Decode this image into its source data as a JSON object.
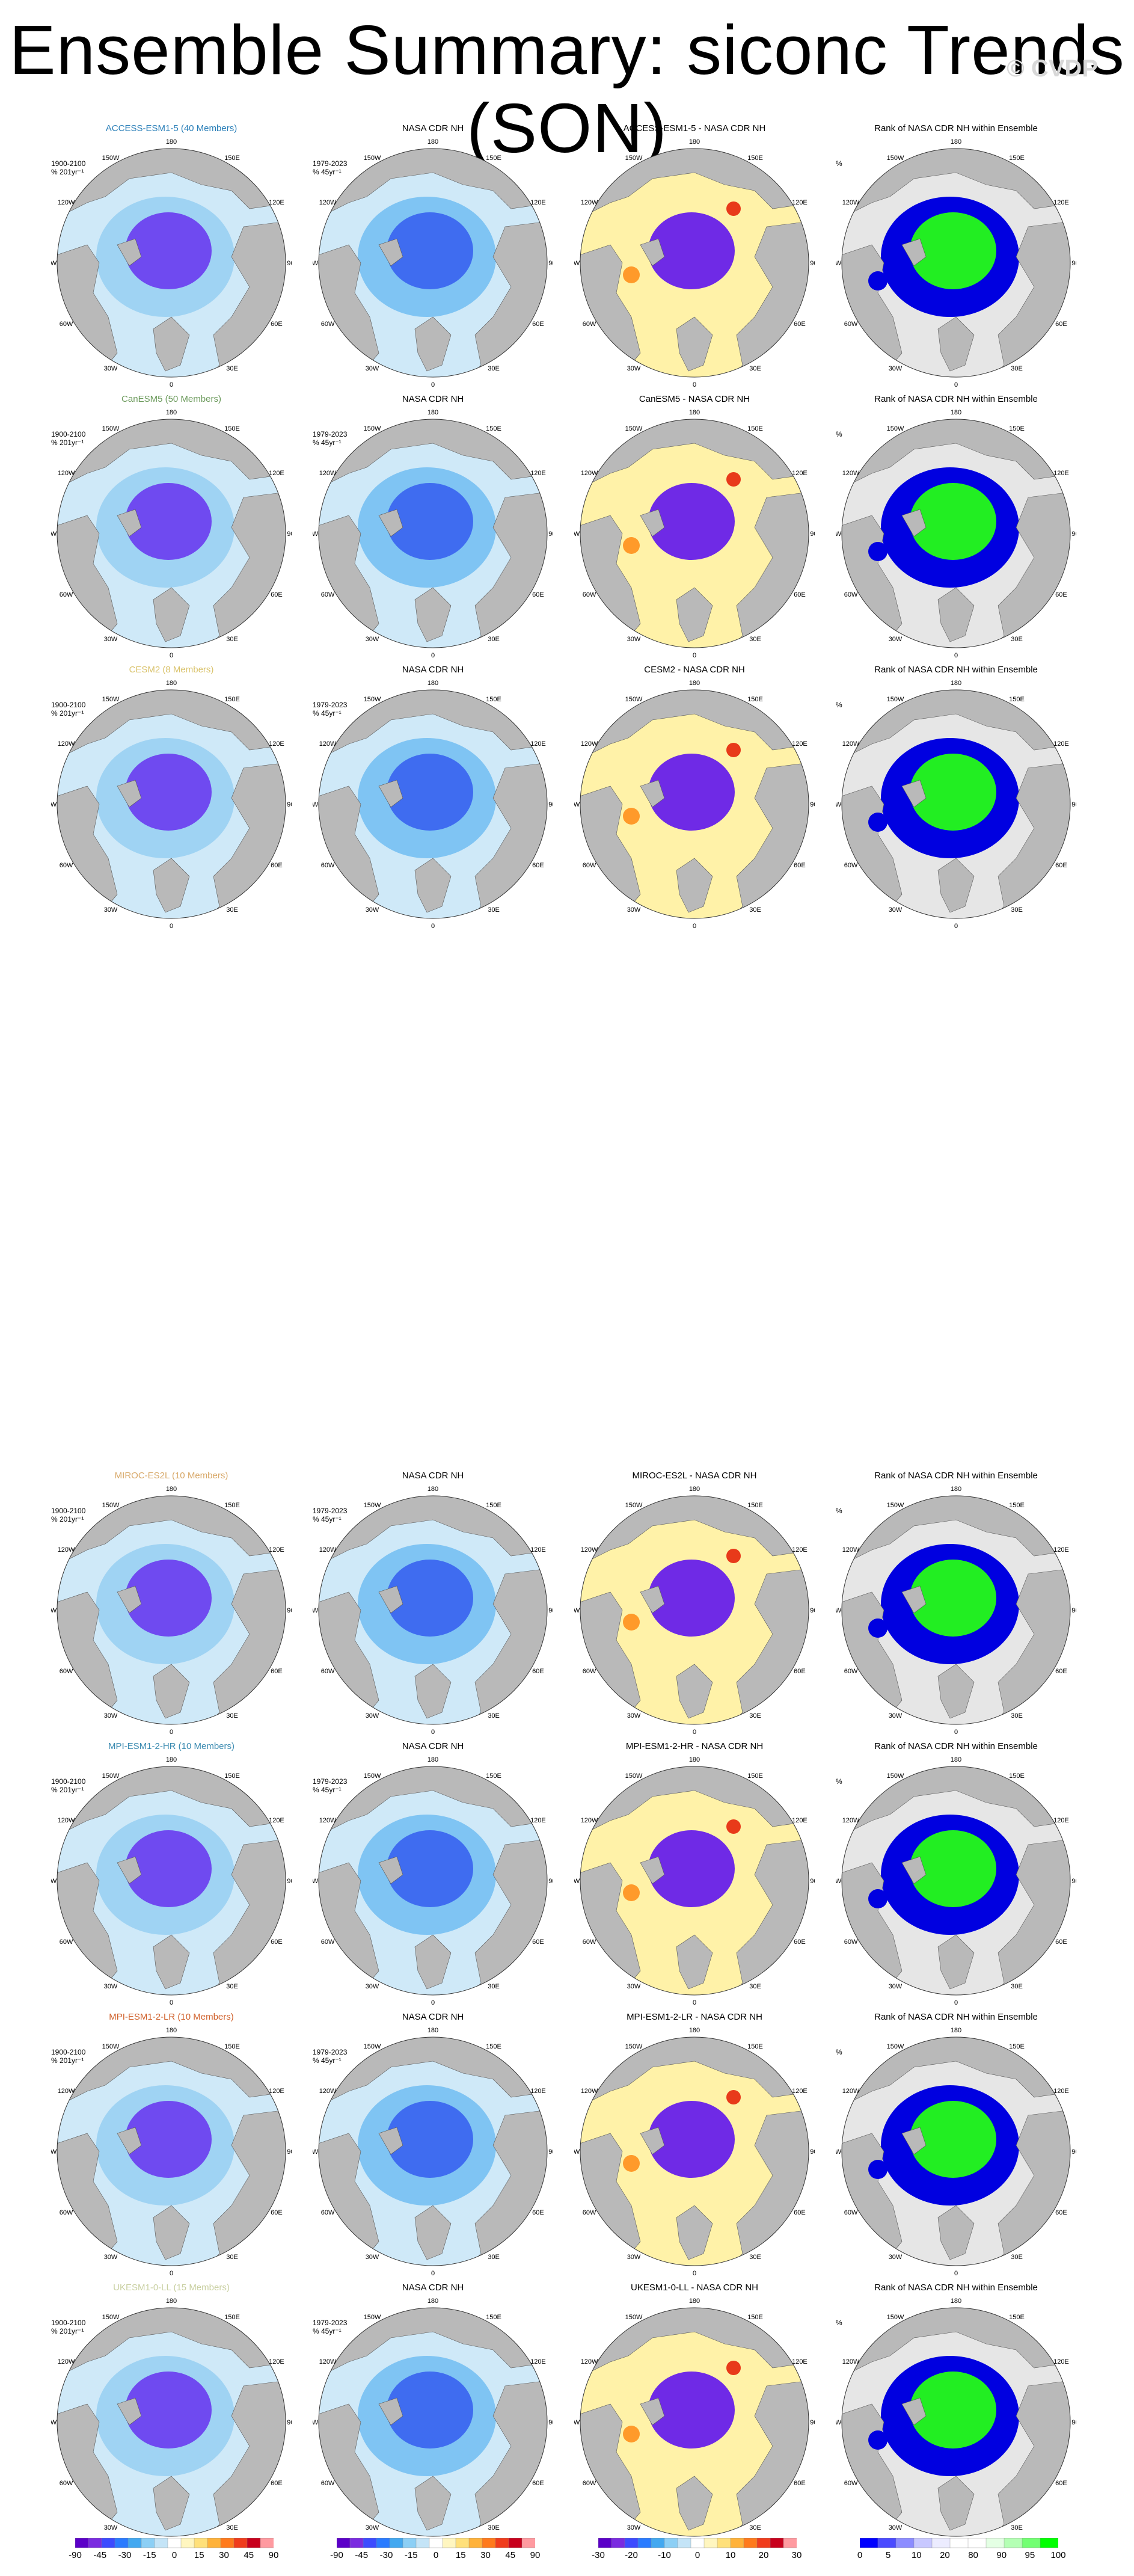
{
  "page": {
    "title": "Ensemble Summary: siconc Trends (SON)",
    "watermark": "© CVDP"
  },
  "common": {
    "obs_title": "NASA CDR NH",
    "model_period": "1900-2100\n% 201yr⁻¹",
    "obs_period": "1979-2023\n% 45yr⁻¹",
    "rank_unit": "%",
    "lon_labels": [
      "180",
      "150E",
      "120E",
      "90E",
      "60E",
      "30E",
      "0",
      "30W",
      "60W",
      "90W",
      "120W",
      "150W"
    ]
  },
  "rows": [
    {
      "model": "ACCESS-ESM1-5 (40 Members)",
      "model_color": "#2a7fb8",
      "diff_title": "ACCESS-ESM1-5 - NASA CDR NH",
      "rank_title": "Rank of NASA CDR NH within Ensemble"
    },
    {
      "model": "CanESM5 (50 Members)",
      "model_color": "#6b9a5b",
      "diff_title": "CanESM5 - NASA CDR NH",
      "rank_title": "Rank of NASA CDR NH within Ensemble"
    },
    {
      "model": "CESM2 (8 Members)",
      "model_color": "#d9c26a",
      "diff_title": "CESM2 - NASA CDR NH",
      "rank_title": "Rank of NASA CDR NH within Ensemble"
    },
    {
      "model": "MIROC-ES2L (10 Members)",
      "model_color": "#d8a96a",
      "diff_title": "MIROC-ES2L - NASA CDR NH",
      "rank_title": "Rank of NASA CDR NH within Ensemble"
    },
    {
      "model": "MPI-ESM1-2-HR (10 Members)",
      "model_color": "#3a8ab0",
      "diff_title": "MPI-ESM1-2-HR - NASA CDR NH",
      "rank_title": "Rank of NASA CDR NH within Ensemble"
    },
    {
      "model": "MPI-ESM1-2-LR (10 Members)",
      "model_color": "#d0602a",
      "diff_title": "MPI-ESM1-2-LR - NASA CDR NH",
      "rank_title": "Rank of NASA CDR NH within Ensemble"
    },
    {
      "model": "UKESM1-0-LL (15 Members)",
      "model_color": "#c8cfa0",
      "diff_title": "UKESM1-0-LL - NASA CDR NH",
      "rank_title": "Rank of NASA CDR NH within Ensemble"
    }
  ],
  "chart_data": {
    "type": "heatmap",
    "projection": "north polar stereographic",
    "variable": "siconc",
    "season": "SON",
    "colorbars": [
      {
        "ticks": [
          "-90",
          "-45",
          "-30",
          "-15",
          "0",
          "15",
          "30",
          "45",
          "90"
        ],
        "colors": [
          "#5b00c8",
          "#7a2be0",
          "#3c4bff",
          "#2a7bff",
          "#43a8f0",
          "#8ccff5",
          "#c4e4f7",
          "#ffffff",
          "#fff6c0",
          "#ffe07a",
          "#ffb23a",
          "#ff7a1c",
          "#f03c1c",
          "#c8001c",
          "#ff9aa0"
        ]
      },
      {
        "ticks": [
          "-90",
          "-45",
          "-30",
          "-15",
          "0",
          "15",
          "30",
          "45",
          "90"
        ],
        "colors": [
          "#5b00c8",
          "#7a2be0",
          "#3c4bff",
          "#2a7bff",
          "#43a8f0",
          "#8ccff5",
          "#c4e4f7",
          "#ffffff",
          "#fff6c0",
          "#ffe07a",
          "#ffb23a",
          "#ff7a1c",
          "#f03c1c",
          "#c8001c",
          "#ff9aa0"
        ]
      },
      {
        "ticks": [
          "-30",
          "-20",
          "-10",
          "0",
          "10",
          "20",
          "30"
        ],
        "colors": [
          "#5b00c8",
          "#7a2be0",
          "#3c4bff",
          "#2a7bff",
          "#43a8f0",
          "#8ccff5",
          "#c4e4f7",
          "#ffffff",
          "#fff6c0",
          "#ffe07a",
          "#ffb23a",
          "#ff7a1c",
          "#f03c1c",
          "#c8001c",
          "#ff9aa0"
        ]
      },
      {
        "ticks": [
          "0",
          "5",
          "10",
          "20",
          "80",
          "90",
          "95",
          "100"
        ],
        "colors": [
          "#0000ff",
          "#4a4aff",
          "#8c8cff",
          "#c8c8ff",
          "#ececff",
          "#ffffff",
          "#ffffff",
          "#e4ffe4",
          "#b4ffb4",
          "#72ff72",
          "#00ff00"
        ]
      }
    ]
  }
}
